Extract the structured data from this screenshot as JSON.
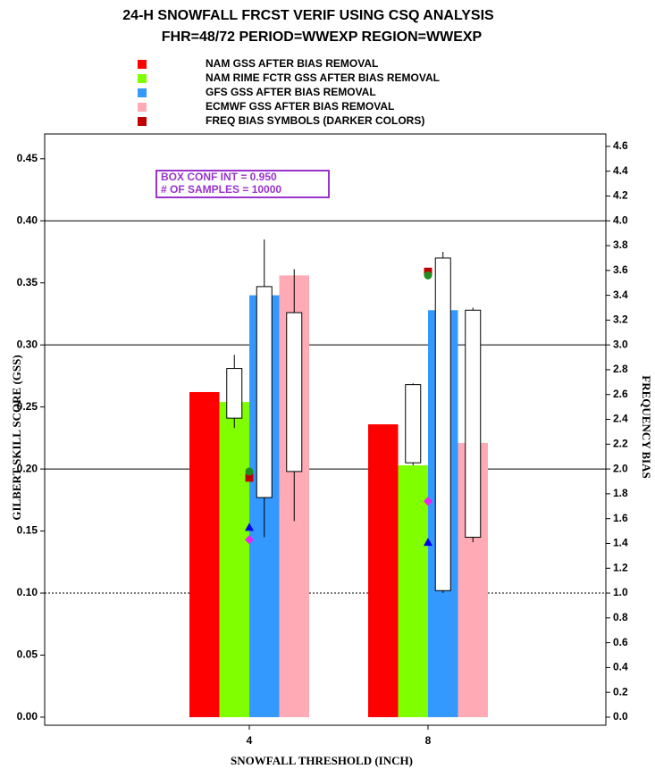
{
  "chart_data": {
    "type": "bar",
    "title": "24-H SNOWFALL FRCST VERIF USING CSQ ANALYSIS",
    "subtitle": "FHR=48/72 PERIOD=WWEXP REGION=WWEXP",
    "x_label": "SNOWFALL THRESHOLD (INCH)",
    "y_label": "GILBERT SKILL SCORE (GSS)",
    "y2_label": "FREQUENCY BIAS",
    "annotations": [
      "BOX CONF INT = 0.950",
      "# OF SAMPLES = 10000"
    ],
    "bias_legend": "FREQ BIAS SYMBOLS (DARKER COLORS)",
    "bias_legend_color": "#c00000",
    "categories": [
      "4",
      "8"
    ],
    "series": [
      {
        "name": "NAM GSS AFTER BIAS REMOVAL",
        "color": "#ff0000",
        "values": [
          0.262,
          0.236
        ],
        "bias_values": [
          1.93,
          3.59
        ],
        "bias_color": "#c00000",
        "bias_marker": "square"
      },
      {
        "name": "NAM RIME FCTR GSS AFTER BIAS REMOVAL",
        "color": "#80ff00",
        "values": [
          0.254,
          0.203
        ],
        "box": [
          [
            0.233,
            0.241,
            0.281,
            0.292
          ],
          [
            0.203,
            0.205,
            0.268,
            0.269
          ]
        ],
        "bias_values": [
          1.98,
          3.56
        ],
        "bias_color": "#1f8f1f",
        "bias_marker": "circle"
      },
      {
        "name": "GFS GSS AFTER BIAS REMOVAL",
        "color": "#3399ff",
        "values": [
          0.34,
          0.328
        ],
        "box": [
          [
            0.145,
            0.177,
            0.347,
            0.385
          ],
          [
            0.1,
            0.102,
            0.37,
            0.375
          ]
        ],
        "bias_values": [
          1.53,
          1.41
        ],
        "bias_color": "#0000ee",
        "bias_marker": "triangle"
      },
      {
        "name": "ECMWF GSS AFTER BIAS REMOVAL",
        "color": "#ffaab4",
        "values": [
          0.356,
          0.221
        ],
        "box": [
          [
            0.158,
            0.198,
            0.326,
            0.361
          ],
          [
            0.141,
            0.145,
            0.328,
            0.33
          ]
        ],
        "bias_values": [
          1.43,
          1.74
        ],
        "bias_color": "#ee22ee",
        "bias_marker": "diamond"
      }
    ],
    "ylim": [
      -0.0065,
      0.47
    ],
    "yticks": [
      {
        "value": 0,
        "label": "0.00"
      },
      {
        "value": 0.05,
        "label": "0.05"
      },
      {
        "value": 0.1,
        "label": "0.10"
      },
      {
        "value": 0.15,
        "label": "0.15"
      },
      {
        "value": 0.2,
        "label": "0.20"
      },
      {
        "value": 0.25,
        "label": "0.25"
      },
      {
        "value": 0.3,
        "label": "0.30"
      },
      {
        "value": 0.35,
        "label": "0.35"
      },
      {
        "value": 0.4,
        "label": "0.40"
      },
      {
        "value": 0.45,
        "label": "0.45"
      }
    ],
    "y2lim": [
      -0.065,
      4.7
    ],
    "y2ticks": [
      {
        "value": 0,
        "label": "0.0"
      },
      {
        "value": 0.2,
        "label": "0.2"
      },
      {
        "value": 0.4,
        "label": "0.4"
      },
      {
        "value": 0.6,
        "label": "0.6"
      },
      {
        "value": 0.8,
        "label": "0.8"
      },
      {
        "value": 1,
        "label": "1.0"
      },
      {
        "value": 1.2,
        "label": "1.2"
      },
      {
        "value": 1.4,
        "label": "1.4"
      },
      {
        "value": 1.6,
        "label": "1.6"
      },
      {
        "value": 1.8,
        "label": "1.8"
      },
      {
        "value": 2,
        "label": "2.0"
      },
      {
        "value": 2.2,
        "label": "2.2"
      },
      {
        "value": 2.4,
        "label": "2.4"
      },
      {
        "value": 2.6,
        "label": "2.6"
      },
      {
        "value": 2.8,
        "label": "2.8"
      },
      {
        "value": 3,
        "label": "3.0"
      },
      {
        "value": 3.2,
        "label": "3.2"
      },
      {
        "value": 3.4,
        "label": "3.4"
      },
      {
        "value": 3.6,
        "label": "3.6"
      },
      {
        "value": 3.8,
        "label": "3.8"
      },
      {
        "value": 4,
        "label": "4.0"
      },
      {
        "value": 4.2,
        "label": "4.2"
      },
      {
        "value": 4.4,
        "label": "4.4"
      },
      {
        "value": 4.6,
        "label": "4.6"
      }
    ],
    "hlines": [
      0.2,
      0.3,
      0.4
    ],
    "dotted_hline": 0.1
  }
}
